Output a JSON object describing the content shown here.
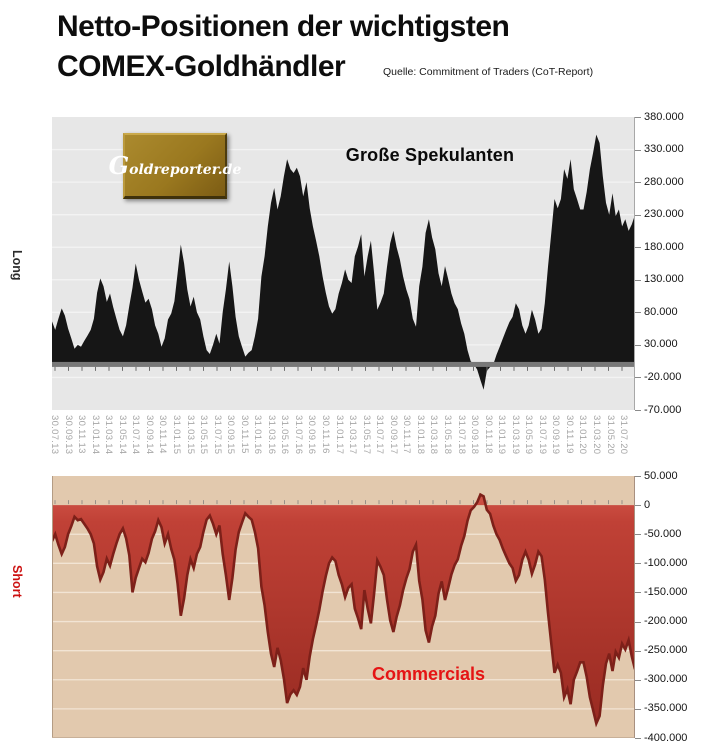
{
  "header": {
    "title_line1": "Netto-Positionen der wichtigsten",
    "title_line2": "COMEX-Goldhändler",
    "source": "Quelle: Commitment of Traders (CoT-Report)"
  },
  "logo": {
    "text": "Goldreporter.de"
  },
  "chart_data": [
    {
      "type": "area",
      "series_label": "Große Spekulanten",
      "side_label": "Long",
      "unit": "contracts, values in thousands",
      "ylim": [
        -70000,
        380000
      ],
      "ytick_labels": [
        "380.000",
        "330.000",
        "280.000",
        "230.000",
        "180.000",
        "130.000",
        "80.000",
        "30.000",
        "-20.000",
        "-70.000"
      ],
      "ytick_values": [
        380,
        330,
        280,
        230,
        180,
        130,
        80,
        30,
        -20,
        -70
      ],
      "grid": true,
      "area_color": "#161616",
      "plot_bg": "#e7e7e7",
      "zero_axis_color": "#787878",
      "x_labels": [
        "30.07.13",
        "30.09.13",
        "30.11.13",
        "31.01.14",
        "31.03.14",
        "31.05.14",
        "31.07.14",
        "30.09.14",
        "30.11.14",
        "31.01.15",
        "31.03.15",
        "31.05.15",
        "31.07.15",
        "30.09.15",
        "30.11.15",
        "31.01.16",
        "31.03.16",
        "31.05.16",
        "31.07.16",
        "30.09.16",
        "30.11.16",
        "31.01.17",
        "31.03.17",
        "31.05.17",
        "31.07.17",
        "30.09.17",
        "30.11.17",
        "31.01.18",
        "31.03.18",
        "31.05.18",
        "31.07.18",
        "30.09.18",
        "30.11.18",
        "31.01.19",
        "31.03.19",
        "31.05.19",
        "31.07.19",
        "30.09.19",
        "30.11.19",
        "31.01.20",
        "31.03.20",
        "31.05.20",
        "31.07.20"
      ],
      "values_thousands": [
        66,
        53,
        70,
        86,
        75,
        55,
        40,
        24,
        30,
        27,
        36,
        44,
        53,
        70,
        110,
        132,
        120,
        96,
        109,
        88,
        70,
        53,
        43,
        60,
        90,
        118,
        155,
        130,
        112,
        95,
        101,
        85,
        60,
        47,
        27,
        40,
        69,
        78,
        97,
        140,
        184,
        155,
        115,
        89,
        104,
        80,
        69,
        43,
        22,
        16,
        30,
        47,
        32,
        80,
        115,
        158,
        120,
        73,
        43,
        27,
        12,
        18,
        22,
        43,
        70,
        135,
        166,
        212,
        248,
        271,
        238,
        258,
        289,
        315,
        300,
        294,
        302,
        289,
        258,
        280,
        240,
        212,
        190,
        166,
        135,
        110,
        89,
        78,
        85,
        109,
        125,
        146,
        130,
        125,
        166,
        181,
        200,
        135,
        166,
        190,
        140,
        84,
        95,
        109,
        150,
        186,
        205,
        180,
        161,
        135,
        115,
        100,
        70,
        58,
        120,
        150,
        202,
        223,
        195,
        177,
        140,
        120,
        151,
        131,
        109,
        94,
        85,
        63,
        47,
        22,
        5,
        0,
        -8,
        -24,
        -39,
        -10,
        -4,
        0,
        15,
        27,
        40,
        53,
        65,
        73,
        94,
        85,
        60,
        47,
        60,
        84,
        69,
        47,
        55,
        94,
        150,
        202,
        254,
        240,
        254,
        300,
        285,
        315,
        269,
        254,
        238,
        238,
        265,
        300,
        325,
        353,
        340,
        289,
        248,
        230,
        263,
        228,
        238,
        212,
        223,
        205,
        215,
        230
      ]
    },
    {
      "type": "area",
      "series_label": "Commercials",
      "side_label": "Short",
      "unit": "contracts, values in thousands",
      "ylim": [
        -400000,
        50000
      ],
      "ytick_labels": [
        "50.000",
        "0",
        "-50.000",
        "-100.000",
        "-150.000",
        "-200.000",
        "-250.000",
        "-300.000",
        "-350.000",
        "-400.000"
      ],
      "ytick_values": [
        50,
        0,
        -50,
        -100,
        -150,
        -200,
        -250,
        -300,
        -350,
        -400
      ],
      "grid": true,
      "area_color": "#b23a2f",
      "plot_bg": "#e2c9ae",
      "zero_axis_color": "#7d2019",
      "x_axis": "shared with top chart",
      "values_thousands": [
        -62,
        -50,
        -68,
        -84,
        -72,
        -50,
        -36,
        -20,
        -26,
        -24,
        -32,
        -40,
        -50,
        -66,
        -105,
        -128,
        -115,
        -92,
        -104,
        -84,
        -66,
        -50,
        -40,
        -57,
        -86,
        -150,
        -125,
        -108,
        -92,
        -98,
        -82,
        -58,
        -45,
        -26,
        -38,
        -66,
        -50,
        -75,
        -94,
        -135,
        -190,
        -160,
        -120,
        -93,
        -108,
        -84,
        -72,
        -46,
        -25,
        -18,
        -32,
        -50,
        -35,
        -84,
        -120,
        -163,
        -125,
        -76,
        -46,
        -30,
        -14,
        -20,
        -25,
        -46,
        -74,
        -140,
        -172,
        -218,
        -255,
        -278,
        -245,
        -266,
        -298,
        -340,
        -325,
        -318,
        -326,
        -312,
        -280,
        -300,
        -260,
        -230,
        -206,
        -180,
        -148,
        -122,
        -100,
        -90,
        -96,
        -120,
        -136,
        -158,
        -142,
        -136,
        -178,
        -194,
        -213,
        -146,
        -178,
        -203,
        -152,
        -95,
        -106,
        -120,
        -162,
        -198,
        -218,
        -192,
        -172,
        -146,
        -126,
        -110,
        -80,
        -68,
        -130,
        -162,
        -215,
        -236,
        -208,
        -190,
        -152,
        -131,
        -163,
        -142,
        -119,
        -103,
        -93,
        -70,
        -53,
        -27,
        -9,
        -3,
        5,
        18,
        15,
        -8,
        -15,
        -35,
        -50,
        -60,
        -75,
        -88,
        -100,
        -108,
        -130,
        -120,
        -94,
        -80,
        -94,
        -118,
        -102,
        -80,
        -88,
        -128,
        -185,
        -238,
        -288,
        -274,
        -288,
        -330,
        -316,
        -342,
        -300,
        -286,
        -270,
        -270,
        -295,
        -330,
        -352,
        -375,
        -362,
        -310,
        -272,
        -255,
        -285,
        -252,
        -262,
        -238,
        -248,
        -232,
        -260,
        -282
      ]
    }
  ]
}
